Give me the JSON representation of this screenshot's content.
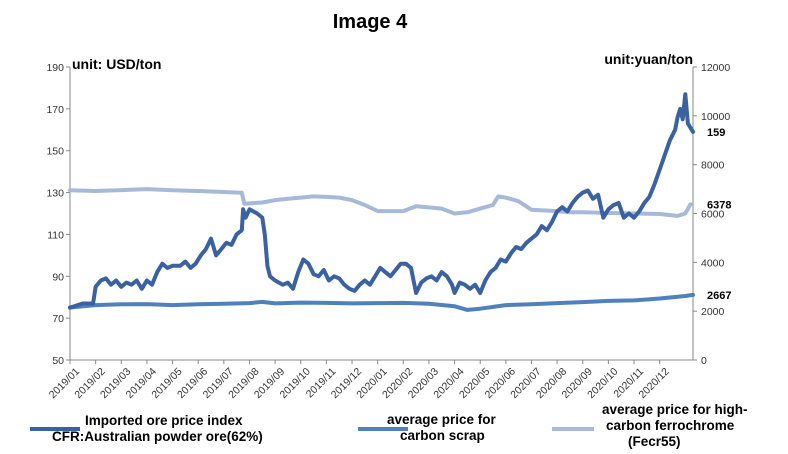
{
  "chart_data": {
    "type": "line",
    "title": "Image 4",
    "left_unit": "unit: USD/ton",
    "right_unit": "unit:yuan/ton",
    "ylim_left": [
      50,
      190
    ],
    "yticks_left": [
      "190",
      "170",
      "150",
      "130",
      "110",
      "90",
      "70",
      "50"
    ],
    "ylim_right": [
      0,
      12000
    ],
    "yticks_right": [
      "12000",
      "10000",
      "8000",
      "6000",
      "4000",
      "2000",
      "0"
    ],
    "categories": [
      "2019/01",
      "2019/02",
      "2019/03",
      "2019/04",
      "2019/05",
      "2019/06",
      "2019/07",
      "2019/08",
      "2019/09",
      "2019/10",
      "2019/11",
      "2019/12",
      "2020/01",
      "2020/02",
      "2020/03",
      "2020/04",
      "2020/05",
      "2020/06",
      "2020/07",
      "2020/08",
      "2020/09",
      "2020/10",
      "2020/11",
      "2020/12"
    ],
    "series": [
      {
        "name": "Imported ore price index CFR:Australian powder ore(62%)",
        "legend_line1": "Imported ore price index",
        "legend_line2": "CFR:Australian powder ore(62%)",
        "axis": "left",
        "color": "#3a62a0",
        "end_label": "159",
        "values": [
          [
            0,
            75
          ],
          [
            0.5,
            77
          ],
          [
            0.9,
            77
          ],
          [
            1.0,
            85
          ],
          [
            1.2,
            88
          ],
          [
            1.4,
            89
          ],
          [
            1.6,
            86
          ],
          [
            1.8,
            88
          ],
          [
            2.0,
            85
          ],
          [
            2.2,
            87
          ],
          [
            2.4,
            86
          ],
          [
            2.6,
            88
          ],
          [
            2.8,
            84
          ],
          [
            3.0,
            88
          ],
          [
            3.2,
            86
          ],
          [
            3.4,
            92
          ],
          [
            3.6,
            96
          ],
          [
            3.8,
            94
          ],
          [
            4.0,
            95
          ],
          [
            4.3,
            95
          ],
          [
            4.5,
            97
          ],
          [
            4.7,
            94
          ],
          [
            4.9,
            96
          ],
          [
            5.1,
            100
          ],
          [
            5.3,
            103
          ],
          [
            5.5,
            108
          ],
          [
            5.7,
            100
          ],
          [
            5.9,
            103
          ],
          [
            6.1,
            106
          ],
          [
            6.3,
            105
          ],
          [
            6.5,
            110
          ],
          [
            6.7,
            112
          ],
          [
            6.75,
            122
          ],
          [
            6.85,
            118
          ],
          [
            7.0,
            122
          ],
          [
            7.3,
            120
          ],
          [
            7.5,
            118
          ],
          [
            7.6,
            110
          ],
          [
            7.7,
            95
          ],
          [
            7.8,
            90
          ],
          [
            8.0,
            88
          ],
          [
            8.3,
            86
          ],
          [
            8.5,
            87
          ],
          [
            8.7,
            84
          ],
          [
            8.9,
            92
          ],
          [
            9.1,
            98
          ],
          [
            9.3,
            96
          ],
          [
            9.5,
            91
          ],
          [
            9.7,
            90
          ],
          [
            9.9,
            93
          ],
          [
            10.1,
            88
          ],
          [
            10.3,
            90
          ],
          [
            10.5,
            89
          ],
          [
            10.7,
            86
          ],
          [
            10.9,
            84
          ],
          [
            11.1,
            83
          ],
          [
            11.3,
            86
          ],
          [
            11.5,
            88
          ],
          [
            11.7,
            86
          ],
          [
            11.9,
            90
          ],
          [
            12.1,
            94
          ],
          [
            12.3,
            92
          ],
          [
            12.5,
            90
          ],
          [
            12.7,
            93
          ],
          [
            12.9,
            96
          ],
          [
            13.1,
            96
          ],
          [
            13.3,
            94
          ],
          [
            13.5,
            82
          ],
          [
            13.7,
            87
          ],
          [
            13.9,
            89
          ],
          [
            14.1,
            90
          ],
          [
            14.3,
            88
          ],
          [
            14.5,
            92
          ],
          [
            14.7,
            90
          ],
          [
            14.9,
            86
          ],
          [
            15.0,
            82
          ],
          [
            15.2,
            87
          ],
          [
            15.4,
            86
          ],
          [
            15.6,
            84
          ],
          [
            15.8,
            86
          ],
          [
            16.0,
            82
          ],
          [
            16.2,
            88
          ],
          [
            16.4,
            92
          ],
          [
            16.6,
            94
          ],
          [
            16.8,
            98
          ],
          [
            17.0,
            97
          ],
          [
            17.2,
            101
          ],
          [
            17.4,
            104
          ],
          [
            17.6,
            103
          ],
          [
            17.8,
            106
          ],
          [
            18.0,
            108
          ],
          [
            18.2,
            110
          ],
          [
            18.4,
            114
          ],
          [
            18.6,
            112
          ],
          [
            18.8,
            116
          ],
          [
            19.0,
            121
          ],
          [
            19.2,
            123
          ],
          [
            19.4,
            121
          ],
          [
            19.6,
            125
          ],
          [
            19.8,
            128
          ],
          [
            20.0,
            130
          ],
          [
            20.2,
            131
          ],
          [
            20.4,
            127
          ],
          [
            20.6,
            129
          ],
          [
            20.8,
            118
          ],
          [
            21.0,
            122
          ],
          [
            21.2,
            124
          ],
          [
            21.4,
            125
          ],
          [
            21.6,
            118
          ],
          [
            21.8,
            120
          ],
          [
            22.0,
            118
          ],
          [
            22.2,
            121
          ],
          [
            22.4,
            125
          ],
          [
            22.6,
            128
          ],
          [
            22.8,
            134
          ],
          [
            23.0,
            141
          ],
          [
            23.2,
            148
          ],
          [
            23.4,
            155
          ],
          [
            23.6,
            160
          ],
          [
            23.7,
            166
          ],
          [
            23.8,
            170
          ],
          [
            23.9,
            165
          ],
          [
            24.0,
            177
          ],
          [
            24.1,
            163
          ],
          [
            24.3,
            159
          ]
        ]
      },
      {
        "name": "average price for carbon scrap",
        "legend_line1": "average price for",
        "legend_line2": "carbon scrap",
        "axis": "right",
        "color": "#4f81bd",
        "end_label": "2667",
        "values": [
          [
            0,
            2150
          ],
          [
            1,
            2250
          ],
          [
            2,
            2280
          ],
          [
            3,
            2290
          ],
          [
            4,
            2250
          ],
          [
            5,
            2280
          ],
          [
            6,
            2300
          ],
          [
            7,
            2330
          ],
          [
            7.5,
            2380
          ],
          [
            8,
            2320
          ],
          [
            9,
            2350
          ],
          [
            10,
            2340
          ],
          [
            11,
            2320
          ],
          [
            12,
            2330
          ],
          [
            13,
            2340
          ],
          [
            14,
            2300
          ],
          [
            15,
            2200
          ],
          [
            15.5,
            2050
          ],
          [
            16,
            2100
          ],
          [
            17,
            2250
          ],
          [
            18,
            2280
          ],
          [
            19,
            2330
          ],
          [
            20,
            2370
          ],
          [
            21,
            2420
          ],
          [
            22,
            2440
          ],
          [
            23,
            2520
          ],
          [
            24,
            2620
          ],
          [
            24.3,
            2667
          ]
        ]
      },
      {
        "name": "average price for high-carbon ferrochrome (Fecr55)",
        "legend_line1": "average price for high-",
        "legend_line2": "carbon ferrochrome",
        "legend_line3": "(Fecr55)",
        "axis": "right",
        "color": "#a7b9d9",
        "end_label": "6378",
        "values": [
          [
            0,
            6950
          ],
          [
            1,
            6920
          ],
          [
            2,
            6960
          ],
          [
            3,
            7000
          ],
          [
            4,
            6950
          ],
          [
            5,
            6920
          ],
          [
            6,
            6880
          ],
          [
            6.7,
            6850
          ],
          [
            6.8,
            6400
          ],
          [
            7.5,
            6450
          ],
          [
            8,
            6550
          ],
          [
            8.5,
            6600
          ],
          [
            9,
            6650
          ],
          [
            9.5,
            6700
          ],
          [
            10,
            6680
          ],
          [
            10.5,
            6650
          ],
          [
            11,
            6550
          ],
          [
            11.5,
            6350
          ],
          [
            12,
            6100
          ],
          [
            12.5,
            6100
          ],
          [
            13,
            6100
          ],
          [
            13.5,
            6300
          ],
          [
            14,
            6250
          ],
          [
            14.5,
            6200
          ],
          [
            15,
            6000
          ],
          [
            15.5,
            6050
          ],
          [
            16,
            6200
          ],
          [
            16.5,
            6350
          ],
          [
            16.7,
            6700
          ],
          [
            17,
            6650
          ],
          [
            17.5,
            6500
          ],
          [
            18,
            6150
          ],
          [
            19,
            6100
          ],
          [
            19.5,
            6050
          ],
          [
            20,
            6050
          ],
          [
            21,
            6020
          ],
          [
            22,
            6000
          ],
          [
            23,
            5980
          ],
          [
            23.7,
            5900
          ],
          [
            24.0,
            6000
          ],
          [
            24.2,
            6378
          ]
        ]
      }
    ]
  }
}
